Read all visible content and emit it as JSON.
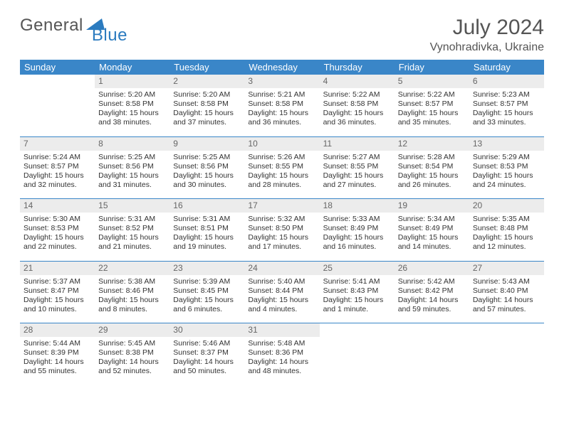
{
  "brand": {
    "part1": "General",
    "part2": "Blue"
  },
  "title": "July 2024",
  "location": "Vynohradivka, Ukraine",
  "colors": {
    "header_bg": "#3a86c8",
    "header_text": "#ffffff",
    "daynum_bg": "#ececec",
    "daynum_text": "#666666",
    "week_divider": "#3a86c8",
    "brand_gray": "#555555",
    "brand_blue": "#2b7bbf",
    "body_text": "#333333"
  },
  "weekdays": [
    "Sunday",
    "Monday",
    "Tuesday",
    "Wednesday",
    "Thursday",
    "Friday",
    "Saturday"
  ],
  "weeks": [
    [
      {
        "blank": true
      },
      {
        "day": "1",
        "sunrise": "Sunrise: 5:20 AM",
        "sunset": "Sunset: 8:58 PM",
        "daylight": "Daylight: 15 hours and 38 minutes."
      },
      {
        "day": "2",
        "sunrise": "Sunrise: 5:20 AM",
        "sunset": "Sunset: 8:58 PM",
        "daylight": "Daylight: 15 hours and 37 minutes."
      },
      {
        "day": "3",
        "sunrise": "Sunrise: 5:21 AM",
        "sunset": "Sunset: 8:58 PM",
        "daylight": "Daylight: 15 hours and 36 minutes."
      },
      {
        "day": "4",
        "sunrise": "Sunrise: 5:22 AM",
        "sunset": "Sunset: 8:58 PM",
        "daylight": "Daylight: 15 hours and 36 minutes."
      },
      {
        "day": "5",
        "sunrise": "Sunrise: 5:22 AM",
        "sunset": "Sunset: 8:57 PM",
        "daylight": "Daylight: 15 hours and 35 minutes."
      },
      {
        "day": "6",
        "sunrise": "Sunrise: 5:23 AM",
        "sunset": "Sunset: 8:57 PM",
        "daylight": "Daylight: 15 hours and 33 minutes."
      }
    ],
    [
      {
        "day": "7",
        "sunrise": "Sunrise: 5:24 AM",
        "sunset": "Sunset: 8:57 PM",
        "daylight": "Daylight: 15 hours and 32 minutes."
      },
      {
        "day": "8",
        "sunrise": "Sunrise: 5:25 AM",
        "sunset": "Sunset: 8:56 PM",
        "daylight": "Daylight: 15 hours and 31 minutes."
      },
      {
        "day": "9",
        "sunrise": "Sunrise: 5:25 AM",
        "sunset": "Sunset: 8:56 PM",
        "daylight": "Daylight: 15 hours and 30 minutes."
      },
      {
        "day": "10",
        "sunrise": "Sunrise: 5:26 AM",
        "sunset": "Sunset: 8:55 PM",
        "daylight": "Daylight: 15 hours and 28 minutes."
      },
      {
        "day": "11",
        "sunrise": "Sunrise: 5:27 AM",
        "sunset": "Sunset: 8:55 PM",
        "daylight": "Daylight: 15 hours and 27 minutes."
      },
      {
        "day": "12",
        "sunrise": "Sunrise: 5:28 AM",
        "sunset": "Sunset: 8:54 PM",
        "daylight": "Daylight: 15 hours and 26 minutes."
      },
      {
        "day": "13",
        "sunrise": "Sunrise: 5:29 AM",
        "sunset": "Sunset: 8:53 PM",
        "daylight": "Daylight: 15 hours and 24 minutes."
      }
    ],
    [
      {
        "day": "14",
        "sunrise": "Sunrise: 5:30 AM",
        "sunset": "Sunset: 8:53 PM",
        "daylight": "Daylight: 15 hours and 22 minutes."
      },
      {
        "day": "15",
        "sunrise": "Sunrise: 5:31 AM",
        "sunset": "Sunset: 8:52 PM",
        "daylight": "Daylight: 15 hours and 21 minutes."
      },
      {
        "day": "16",
        "sunrise": "Sunrise: 5:31 AM",
        "sunset": "Sunset: 8:51 PM",
        "daylight": "Daylight: 15 hours and 19 minutes."
      },
      {
        "day": "17",
        "sunrise": "Sunrise: 5:32 AM",
        "sunset": "Sunset: 8:50 PM",
        "daylight": "Daylight: 15 hours and 17 minutes."
      },
      {
        "day": "18",
        "sunrise": "Sunrise: 5:33 AM",
        "sunset": "Sunset: 8:49 PM",
        "daylight": "Daylight: 15 hours and 16 minutes."
      },
      {
        "day": "19",
        "sunrise": "Sunrise: 5:34 AM",
        "sunset": "Sunset: 8:49 PM",
        "daylight": "Daylight: 15 hours and 14 minutes."
      },
      {
        "day": "20",
        "sunrise": "Sunrise: 5:35 AM",
        "sunset": "Sunset: 8:48 PM",
        "daylight": "Daylight: 15 hours and 12 minutes."
      }
    ],
    [
      {
        "day": "21",
        "sunrise": "Sunrise: 5:37 AM",
        "sunset": "Sunset: 8:47 PM",
        "daylight": "Daylight: 15 hours and 10 minutes."
      },
      {
        "day": "22",
        "sunrise": "Sunrise: 5:38 AM",
        "sunset": "Sunset: 8:46 PM",
        "daylight": "Daylight: 15 hours and 8 minutes."
      },
      {
        "day": "23",
        "sunrise": "Sunrise: 5:39 AM",
        "sunset": "Sunset: 8:45 PM",
        "daylight": "Daylight: 15 hours and 6 minutes."
      },
      {
        "day": "24",
        "sunrise": "Sunrise: 5:40 AM",
        "sunset": "Sunset: 8:44 PM",
        "daylight": "Daylight: 15 hours and 4 minutes."
      },
      {
        "day": "25",
        "sunrise": "Sunrise: 5:41 AM",
        "sunset": "Sunset: 8:43 PM",
        "daylight": "Daylight: 15 hours and 1 minute."
      },
      {
        "day": "26",
        "sunrise": "Sunrise: 5:42 AM",
        "sunset": "Sunset: 8:42 PM",
        "daylight": "Daylight: 14 hours and 59 minutes."
      },
      {
        "day": "27",
        "sunrise": "Sunrise: 5:43 AM",
        "sunset": "Sunset: 8:40 PM",
        "daylight": "Daylight: 14 hours and 57 minutes."
      }
    ],
    [
      {
        "day": "28",
        "sunrise": "Sunrise: 5:44 AM",
        "sunset": "Sunset: 8:39 PM",
        "daylight": "Daylight: 14 hours and 55 minutes."
      },
      {
        "day": "29",
        "sunrise": "Sunrise: 5:45 AM",
        "sunset": "Sunset: 8:38 PM",
        "daylight": "Daylight: 14 hours and 52 minutes."
      },
      {
        "day": "30",
        "sunrise": "Sunrise: 5:46 AM",
        "sunset": "Sunset: 8:37 PM",
        "daylight": "Daylight: 14 hours and 50 minutes."
      },
      {
        "day": "31",
        "sunrise": "Sunrise: 5:48 AM",
        "sunset": "Sunset: 8:36 PM",
        "daylight": "Daylight: 14 hours and 48 minutes."
      },
      {
        "blank": true
      },
      {
        "blank": true
      },
      {
        "blank": true
      }
    ]
  ]
}
